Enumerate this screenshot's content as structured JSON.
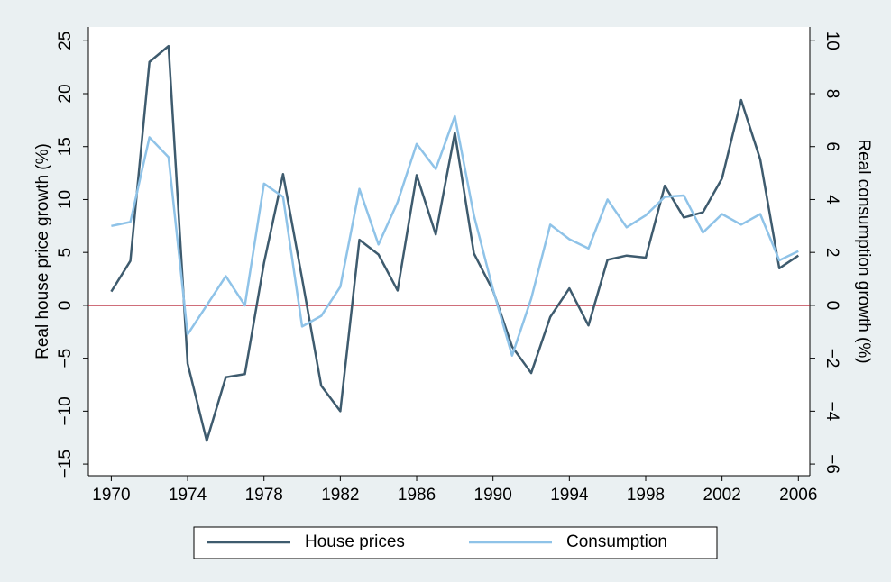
{
  "chart_data": {
    "type": "line",
    "y_label": "Real house price growth (%)",
    "y2_label": "Real consumption growth (%)",
    "x": [
      1970,
      1971,
      1972,
      1973,
      1974,
      1975,
      1976,
      1977,
      1978,
      1979,
      1980,
      1981,
      1982,
      1983,
      1984,
      1985,
      1986,
      1987,
      1988,
      1989,
      1990,
      1991,
      1992,
      1993,
      1994,
      1995,
      1996,
      1997,
      1998,
      1999,
      2000,
      2001,
      2002,
      2003,
      2004,
      2005,
      2006
    ],
    "series": [
      {
        "name": "House prices",
        "color": "#3e5b6e",
        "axis": "y",
        "values": [
          1.3,
          4.2,
          23,
          24.5,
          -5.5,
          -12.8,
          -6.8,
          -6.5,
          4,
          12.4,
          2.5,
          -7.6,
          -10,
          6.2,
          4.8,
          1.4,
          12.3,
          6.7,
          16.3,
          4.9,
          1.4,
          -3.9,
          -6.4,
          -1.1,
          1.6,
          -1.9,
          4.3,
          4.7,
          4.5,
          11.3,
          8.3,
          8.8,
          12,
          19.4,
          13.8,
          3.5,
          4.7
        ]
      },
      {
        "name": "Consumption",
        "color": "#8fc3e8",
        "axis": "y2",
        "values": [
          3.0,
          3.15,
          6.35,
          5.6,
          -1.1,
          0,
          1.1,
          0,
          4.6,
          4.1,
          -0.8,
          -0.4,
          0.7,
          4.4,
          2.3,
          3.9,
          6.1,
          5.15,
          7.15,
          3.4,
          0.6,
          -1.9,
          0.25,
          3.05,
          2.5,
          2.15,
          4.0,
          2.95,
          3.4,
          4.1,
          4.15,
          2.75,
          3.45,
          3.05,
          3.45,
          1.7,
          2.05
        ]
      }
    ],
    "xlim": [
      1968.8,
      2006.6
    ],
    "xticks": [
      1970,
      1974,
      1978,
      1982,
      1986,
      1990,
      1994,
      1998,
      2002,
      2006
    ],
    "ylim": [
      -16.1,
      26.3
    ],
    "yticks": [
      {
        "value": -15,
        "label": "−15"
      },
      {
        "value": -10,
        "label": "−10"
      },
      {
        "value": -5,
        "label": "−5"
      },
      0,
      5,
      10,
      15,
      20,
      25
    ],
    "y2lim": [
      -6.44,
      10.52
    ],
    "y2ticks": [
      {
        "value": -6,
        "label": "−6"
      },
      {
        "value": -4,
        "label": "−4"
      },
      {
        "value": -2,
        "label": "−2"
      },
      0,
      2,
      4,
      6,
      8,
      10
    ],
    "reference_line": {
      "y": 0,
      "color": "#b2182b"
    },
    "legend": "bottom",
    "grid": false
  }
}
